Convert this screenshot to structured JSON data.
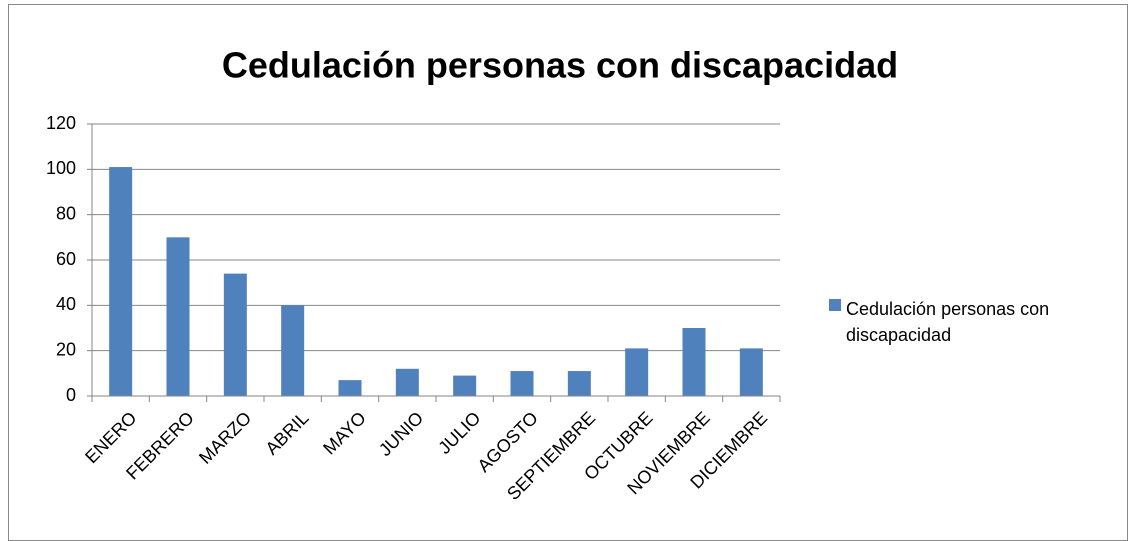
{
  "chart_data": {
    "type": "bar",
    "title": "Cedulación personas con discapacidad",
    "categories": [
      "ENERO",
      "FEBRERO",
      "MARZO",
      "ABRIL",
      "MAYO",
      "JUNIO",
      "JULIO",
      "AGOSTO",
      "SEPTIEMBRE",
      "OCTUBRE",
      "NOVIEMBRE",
      "DICIEMBRE"
    ],
    "series": [
      {
        "name": "Cedulación personas con discapacidad",
        "color": "#4f81bd",
        "values": [
          101,
          70,
          54,
          40,
          7,
          12,
          9,
          11,
          11,
          21,
          30,
          21
        ]
      }
    ],
    "ylim": [
      0,
      120
    ],
    "yticks": [
      0,
      20,
      40,
      60,
      80,
      100,
      120
    ],
    "grid": true,
    "legend": "right"
  }
}
